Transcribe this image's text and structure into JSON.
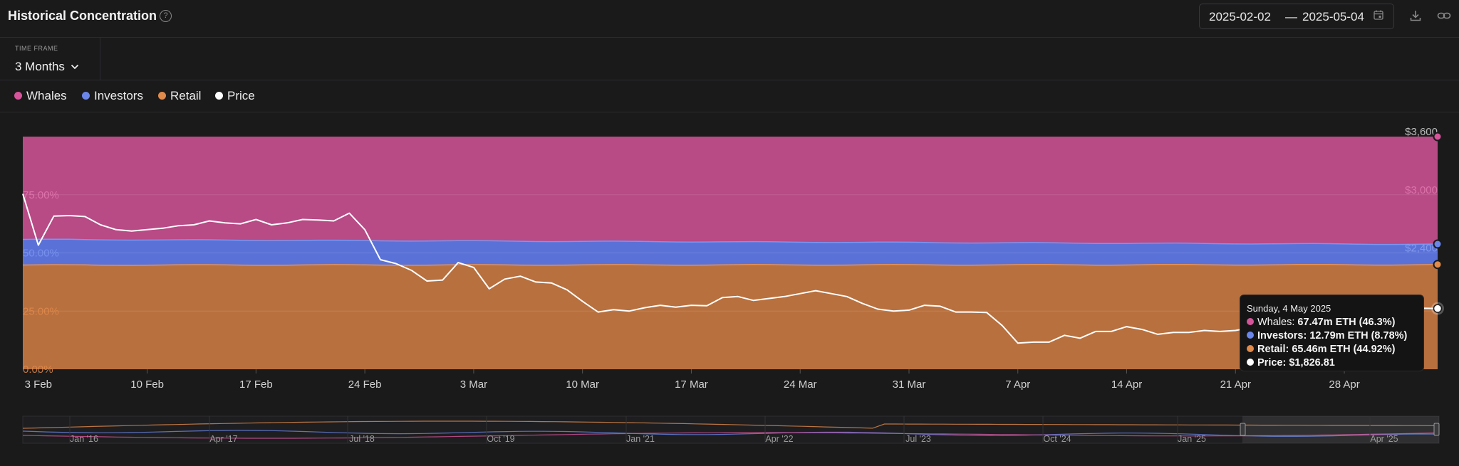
{
  "header": {
    "title": "Historical Concentration",
    "date_start": "2025-02-02",
    "date_sep": "—",
    "date_end": "2025-05-04"
  },
  "timeframe": {
    "label": "TIME FRAME",
    "value": "3 Months"
  },
  "legend": [
    {
      "label": "Whales",
      "color": "#d6549a"
    },
    {
      "label": "Investors",
      "color": "#6a86ea"
    },
    {
      "label": "Retail",
      "color": "#e08a4c"
    },
    {
      "label": "Price",
      "color": "#ffffff"
    }
  ],
  "tooltip": {
    "date": "Sunday, 4 May 2025",
    "rows": [
      {
        "label": "Whales:",
        "value": "67.47m ETH (46.3%)",
        "color": "#d6549a"
      },
      {
        "label": "Investors:",
        "value": "12.79m ETH (8.78%)",
        "color": "#6a86ea"
      },
      {
        "label": "Retail:",
        "value": "65.46m ETH (44.92%)",
        "color": "#e08a4c"
      },
      {
        "label": "Price:",
        "value": "$1,826.81",
        "color": "#ffffff"
      }
    ]
  },
  "chart_data": {
    "type": "area",
    "stacked_percent": true,
    "x": [
      "2025-02-02",
      "2025-02-03",
      "2025-02-04",
      "2025-02-05",
      "2025-02-06",
      "2025-02-07",
      "2025-02-08",
      "2025-02-09",
      "2025-02-10",
      "2025-02-11",
      "2025-02-12",
      "2025-02-13",
      "2025-02-14",
      "2025-02-15",
      "2025-02-16",
      "2025-02-17",
      "2025-02-18",
      "2025-02-19",
      "2025-02-20",
      "2025-02-21",
      "2025-02-22",
      "2025-02-23",
      "2025-02-24",
      "2025-02-25",
      "2025-02-26",
      "2025-02-27",
      "2025-02-28",
      "2025-03-01",
      "2025-03-02",
      "2025-03-03",
      "2025-03-04",
      "2025-03-05",
      "2025-03-06",
      "2025-03-07",
      "2025-03-08",
      "2025-03-09",
      "2025-03-10",
      "2025-03-11",
      "2025-03-12",
      "2025-03-13",
      "2025-03-14",
      "2025-03-15",
      "2025-03-16",
      "2025-03-17",
      "2025-03-18",
      "2025-03-19",
      "2025-03-20",
      "2025-03-21",
      "2025-03-22",
      "2025-03-23",
      "2025-03-24",
      "2025-03-25",
      "2025-03-26",
      "2025-03-27",
      "2025-03-28",
      "2025-03-29",
      "2025-03-30",
      "2025-03-31",
      "2025-04-01",
      "2025-04-02",
      "2025-04-03",
      "2025-04-04",
      "2025-04-05",
      "2025-04-06",
      "2025-04-07",
      "2025-04-08",
      "2025-04-09",
      "2025-04-10",
      "2025-04-11",
      "2025-04-12",
      "2025-04-13",
      "2025-04-14",
      "2025-04-15",
      "2025-04-16",
      "2025-04-17",
      "2025-04-18",
      "2025-04-19",
      "2025-04-20",
      "2025-04-21",
      "2025-04-22",
      "2025-04-23",
      "2025-04-24",
      "2025-04-25",
      "2025-04-26",
      "2025-04-27",
      "2025-04-28",
      "2025-04-29",
      "2025-04-30",
      "2025-05-01",
      "2025-05-02",
      "2025-05-03",
      "2025-05-04"
    ],
    "x_ticks": [
      "3 Feb",
      "10 Feb",
      "17 Feb",
      "24 Feb",
      "3 Mar",
      "10 Mar",
      "17 Mar",
      "24 Mar",
      "31 Mar",
      "7 Apr",
      "14 Apr",
      "21 Apr",
      "28 Apr"
    ],
    "x_tick_dates": [
      "2025-02-03",
      "2025-02-10",
      "2025-02-17",
      "2025-02-24",
      "2025-03-03",
      "2025-03-10",
      "2025-03-17",
      "2025-03-24",
      "2025-03-31",
      "2025-04-07",
      "2025-04-14",
      "2025-04-21",
      "2025-04-28"
    ],
    "y_left_ticks": [
      "0.00%",
      "25.00%",
      "50.00%",
      "75.00%"
    ],
    "y_left_tick_values": [
      0,
      25,
      50,
      75
    ],
    "y_left_range": [
      0,
      100
    ],
    "y_right_ticks": [
      "$3,600",
      "$3,000",
      "$2,400"
    ],
    "y_right_tick_values": [
      3600,
      3000,
      2400
    ],
    "y_right_range": [
      1200,
      3600
    ],
    "whales_pct_start": 44.2,
    "whales_pct_end": 46.3,
    "investors_pct_start": 11.0,
    "investors_pct_end": 8.78,
    "retail_pct_start": 44.8,
    "retail_pct_end": 44.92,
    "price": [
      3010,
      2480,
      2780,
      2785,
      2775,
      2690,
      2640,
      2625,
      2640,
      2655,
      2680,
      2690,
      2730,
      2710,
      2700,
      2745,
      2690,
      2710,
      2745,
      2740,
      2730,
      2810,
      2640,
      2330,
      2290,
      2220,
      2110,
      2120,
      2300,
      2250,
      2030,
      2130,
      2160,
      2100,
      2090,
      2020,
      1900,
      1790,
      1815,
      1800,
      1835,
      1860,
      1840,
      1860,
      1855,
      1940,
      1950,
      1910,
      1930,
      1950,
      1980,
      2010,
      1980,
      1950,
      1880,
      1820,
      1800,
      1810,
      1860,
      1850,
      1790,
      1790,
      1785,
      1650,
      1470,
      1480,
      1480,
      1550,
      1520,
      1590,
      1590,
      1640,
      1610,
      1560,
      1580,
      1580,
      1600,
      1590,
      1600,
      1630,
      1600,
      1780,
      1820,
      1800,
      1760,
      1770,
      1800,
      1810,
      1805,
      1820,
      1830,
      1826.81
    ],
    "navigator_ticks": [
      "Jan '16",
      "Apr '17",
      "Jul '18",
      "Oct '19",
      "Jan '21",
      "Apr '22",
      "Jul '23",
      "Oct '24",
      "Jan '25",
      "Apr '25"
    ]
  }
}
